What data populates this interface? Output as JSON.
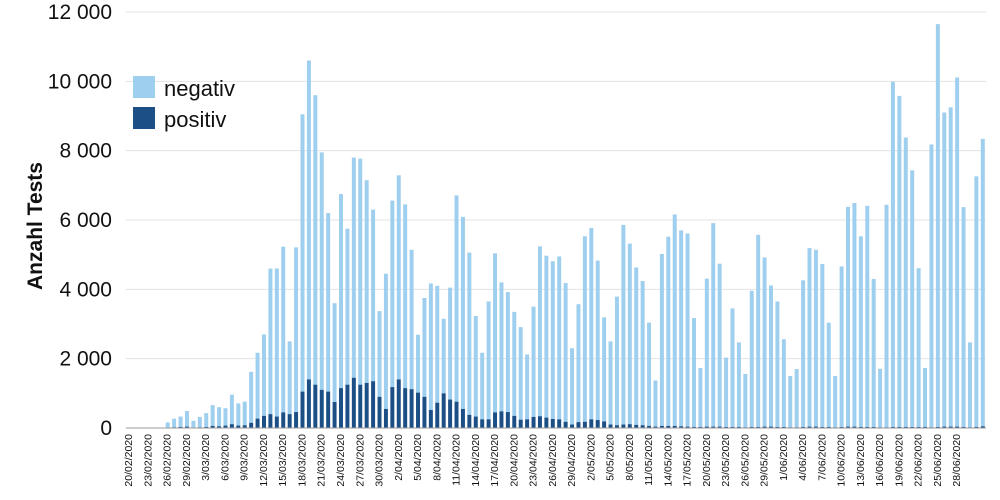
{
  "chart_data": {
    "type": "bar",
    "stacked": true,
    "title": "",
    "xlabel": "",
    "ylabel": "Anzahl Tests",
    "ylim": [
      0,
      12000
    ],
    "y_ticks": [
      0,
      2000,
      4000,
      6000,
      8000,
      10000,
      12000
    ],
    "y_tick_labels": [
      "0",
      "2 000",
      "4 000",
      "6 000",
      "8 000",
      "10 000",
      "12 000"
    ],
    "grid": true,
    "legend": {
      "placement": "top-left"
    },
    "colors": {
      "negativ": "#9fcfee",
      "positiv": "#1c4f86"
    },
    "start_date": "2020-02-20",
    "x_tick_labels": [
      "20/02/2020",
      "23/02/2020",
      "26/02/2020",
      "29/02/2020",
      "3/03/2020",
      "6/03/2020",
      "9/03/2020",
      "12/03/2020",
      "15/03/2020",
      "18/03/2020",
      "21/03/2020",
      "24/03/2020",
      "27/03/2020",
      "30/03/2020",
      "2/04/2020",
      "5/04/2020",
      "8/04/2020",
      "11/04/2020",
      "14/04/2020",
      "17/04/2020",
      "20/04/2020",
      "23/04/2020",
      "26/04/2020",
      "29/04/2020",
      "2/05/2020",
      "5/05/2020",
      "8/05/2020",
      "11/05/2020",
      "14/05/2020",
      "17/05/2020",
      "20/05/2020",
      "23/05/2020",
      "26/05/2020",
      "29/05/2020",
      "1/06/2020",
      "4/06/2020",
      "7/06/2020",
      "10/06/2020",
      "13/06/2020",
      "16/06/2020",
      "19/06/2020",
      "22/06/2020",
      "25/06/2020",
      "28/06/2020"
    ],
    "series": [
      {
        "name": "negativ",
        "values": [
          0,
          0,
          0,
          0,
          0,
          10,
          150,
          250,
          300,
          450,
          200,
          300,
          400,
          600,
          550,
          500,
          850,
          640,
          680,
          1470,
          1900,
          2350,
          4200,
          4270,
          4780,
          2100,
          4750,
          8000,
          9200,
          8350,
          6850,
          5150,
          2850,
          5600,
          4500,
          6350,
          6520,
          5850,
          4950,
          2470,
          3900,
          5380,
          5890,
          5300,
          4020,
          1670,
          2850,
          3650,
          3370,
          2150,
          3230,
          5950,
          5540,
          4680,
          2900,
          1920,
          3400,
          4590,
          3720,
          3460,
          3000,
          2670,
          1870,
          3180,
          4900,
          4670,
          4550,
          4700,
          4000,
          2200,
          3400,
          5350,
          5520,
          4600,
          3000,
          2400,
          3710,
          5760,
          5210,
          4540,
          4160,
          2980,
          1330,
          4960,
          5460,
          6100,
          5650,
          5570,
          3140,
          1700,
          4270,
          5870,
          4700,
          2000,
          3420,
          2440,
          1540,
          3930,
          5540,
          4880,
          4070,
          3620,
          2530,
          1480,
          1680,
          4230,
          5150,
          5100,
          4700,
          3010,
          1480,
          4630,
          6340,
          6450,
          5500,
          6380,
          4270,
          1690,
          6420,
          9960,
          9550,
          8350,
          7400,
          4580,
          1700,
          8160,
          11620,
          9060,
          9210,
          10070,
          6340,
          2450,
          7230,
          8290
        ],
        "positiv_values": [
          0,
          0,
          0,
          0,
          0,
          0,
          10,
          20,
          30,
          40,
          10,
          20,
          30,
          60,
          50,
          70,
          110,
          70,
          80,
          150,
          270,
          350,
          400,
          330,
          450,
          400,
          460,
          1050,
          1400,
          1250,
          1100,
          1050,
          750,
          1150,
          1250,
          1450,
          1250,
          1300,
          1350,
          900,
          550,
          1180,
          1400,
          1150,
          1120,
          1020,
          900,
          520,
          730,
          1000,
          820,
          760,
          550,
          380,
          330,
          250,
          250,
          450,
          480,
          460,
          350,
          240,
          250,
          320,
          340,
          300,
          260,
          250,
          180,
          100,
          170,
          180,
          250,
          230,
          190,
          100,
          80,
          100,
          110,
          90,
          80,
          60,
          40,
          60,
          60,
          60,
          50,
          40,
          30,
          30,
          40,
          40,
          40,
          30,
          30,
          30,
          20,
          30,
          30,
          40,
          40,
          30,
          30,
          20,
          20,
          30,
          40,
          40,
          30,
          30,
          20,
          30,
          40,
          40,
          30,
          30,
          30,
          20,
          20,
          30,
          30,
          30,
          30,
          30,
          30,
          20,
          30,
          40,
          40,
          40,
          30,
          20,
          30,
          50
        ]
      },
      {
        "name": "positiv",
        "values": [
          0,
          0,
          0,
          0,
          0,
          0,
          10,
          20,
          30,
          40,
          10,
          20,
          30,
          60,
          50,
          70,
          110,
          70,
          80,
          150,
          270,
          350,
          400,
          330,
          450,
          400,
          460,
          1050,
          1400,
          1250,
          1100,
          1050,
          750,
          1150,
          1250,
          1450,
          1250,
          1300,
          1350,
          900,
          550,
          1180,
          1400,
          1150,
          1120,
          1020,
          900,
          520,
          730,
          1000,
          820,
          760,
          550,
          380,
          330,
          250,
          250,
          450,
          480,
          460,
          350,
          240,
          250,
          320,
          340,
          300,
          260,
          250,
          180,
          100,
          170,
          180,
          250,
          230,
          190,
          100,
          80,
          100,
          110,
          90,
          80,
          60,
          40,
          60,
          60,
          60,
          50,
          40,
          30,
          30,
          40,
          40,
          40,
          30,
          30,
          30,
          20,
          30,
          30,
          40,
          40,
          30,
          30,
          20,
          20,
          30,
          40,
          40,
          30,
          30,
          20,
          30,
          40,
          40,
          30,
          30,
          30,
          20,
          20,
          30,
          30,
          30,
          30,
          30,
          30,
          20,
          30,
          40,
          40,
          40,
          30,
          20,
          30,
          50
        ]
      }
    ]
  }
}
